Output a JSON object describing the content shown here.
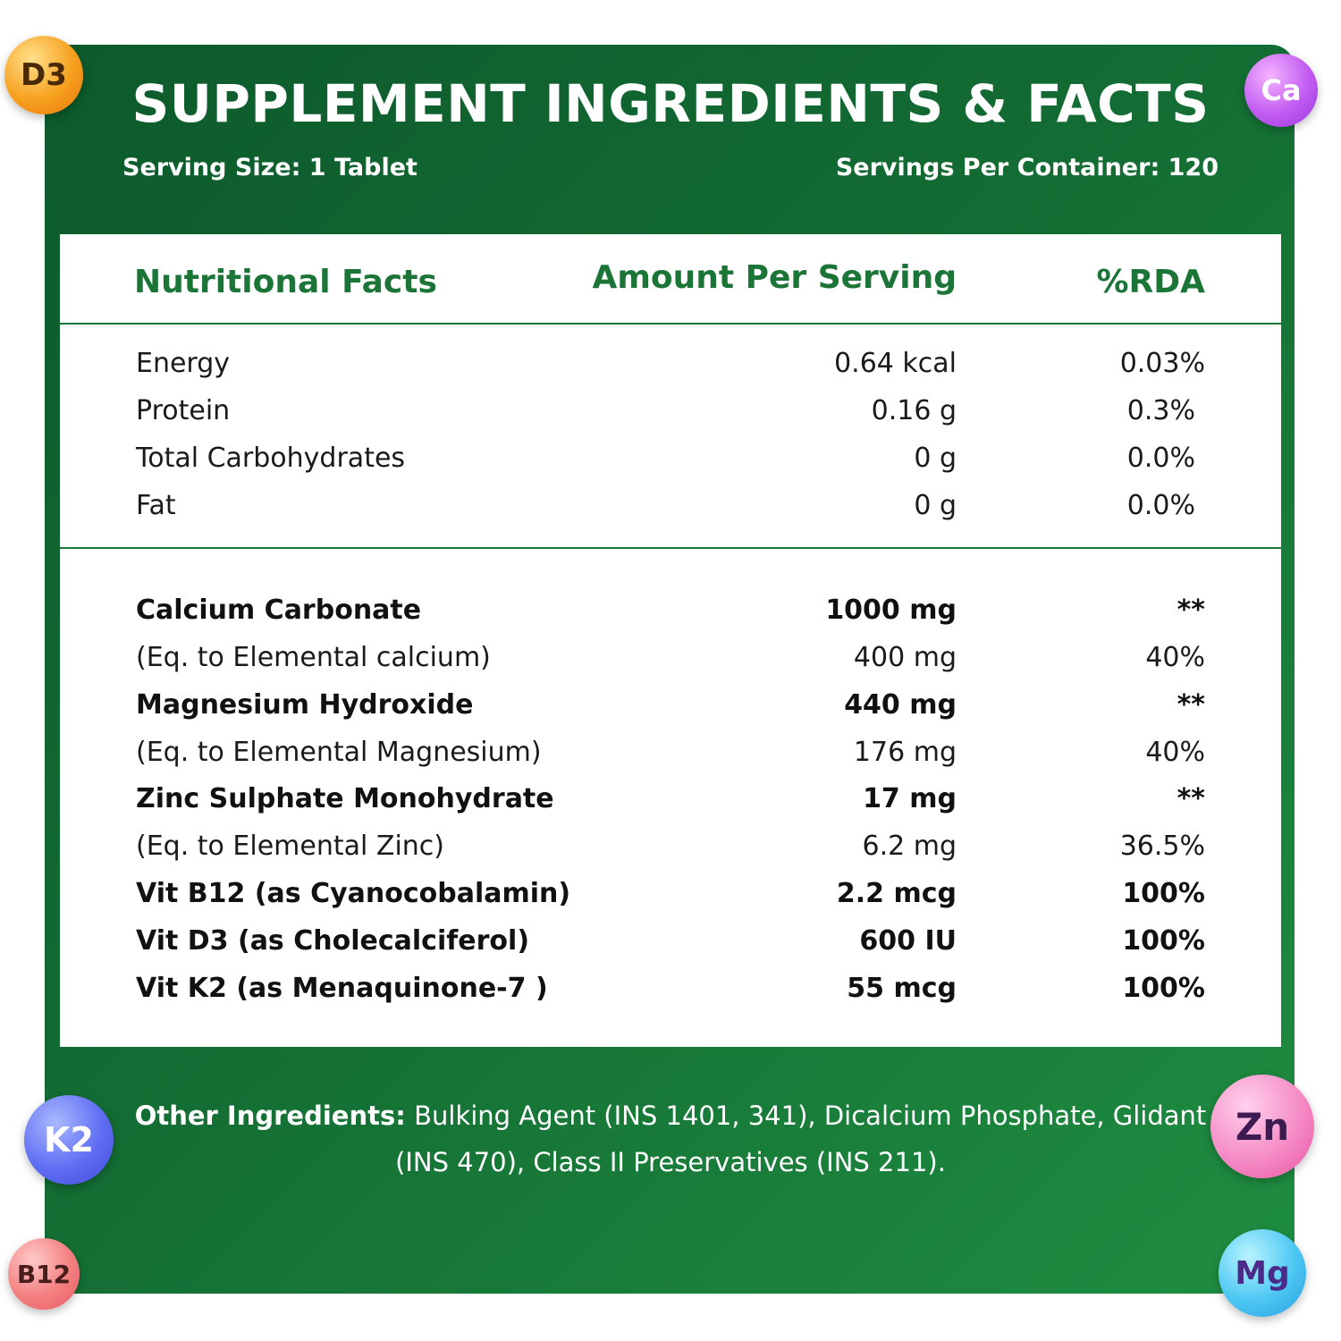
{
  "header": {
    "title": "SUPPLEMENT INGREDIENTS & FACTS",
    "serving_size": "Serving Size: 1 Tablet",
    "servings_per_container": "Servings Per Container: 120"
  },
  "table": {
    "columns": {
      "name": "Nutritional Facts",
      "amount": "Amount Per Serving",
      "rda": "%RDA"
    },
    "basic_rows": [
      {
        "name": "Energy",
        "amount": "0.64 kcal",
        "rda": "0.03%"
      },
      {
        "name": "Protein",
        "amount": "0.16 g",
        "rda": "0.3%"
      },
      {
        "name": "Total Carbohydrates",
        "amount": "0 g",
        "rda": "0.0%"
      },
      {
        "name": "Fat",
        "amount": "0 g",
        "rda": "0.0%"
      }
    ],
    "nutrient_rows": [
      {
        "name": "Calcium Carbonate",
        "amount": "1000 mg",
        "rda": "**",
        "bold": true
      },
      {
        "name": "(Eq. to Elemental calcium)",
        "amount": "400 mg",
        "rda": "40%",
        "bold": false
      },
      {
        "name": "Magnesium Hydroxide",
        "amount": "440 mg",
        "rda": "**",
        "bold": true
      },
      {
        "name": "(Eq. to Elemental Magnesium)",
        "amount": "176 mg",
        "rda": "40%",
        "bold": false
      },
      {
        "name": "Zinc Sulphate Monohydrate",
        "amount": "17 mg",
        "rda": "**",
        "bold": true
      },
      {
        "name": "(Eq. to Elemental Zinc)",
        "amount": "6.2 mg",
        "rda": "36.5%",
        "bold": false
      },
      {
        "name": "Vit B12 (as Cyanocobalamin)",
        "amount": "2.2 mcg",
        "rda": "100%",
        "bold": true
      },
      {
        "name": "Vit D3 (as Cholecalciferol)",
        "amount": "600 IU",
        "rda": "100%",
        "bold": true
      },
      {
        "name": "Vit K2 (as Menaquinone-7 )",
        "amount": "55 mcg",
        "rda": "100%",
        "bold": true
      }
    ]
  },
  "other_ingredients": {
    "label": "Other Ingredients:",
    "text": "Bulking Agent (INS 1401, 341), Dicalcium Phosphate, Glidant (INS 470), Class II Preservatives (INS 211)."
  },
  "badges": {
    "d3": "D3",
    "ca": "Ca",
    "k2": "K2",
    "zn": "Zn",
    "b12": "B12",
    "mg": "Mg"
  },
  "colors": {
    "panel_green": "#136c33",
    "accent_green": "#1a7536",
    "text_dark": "#1a1a1a"
  }
}
